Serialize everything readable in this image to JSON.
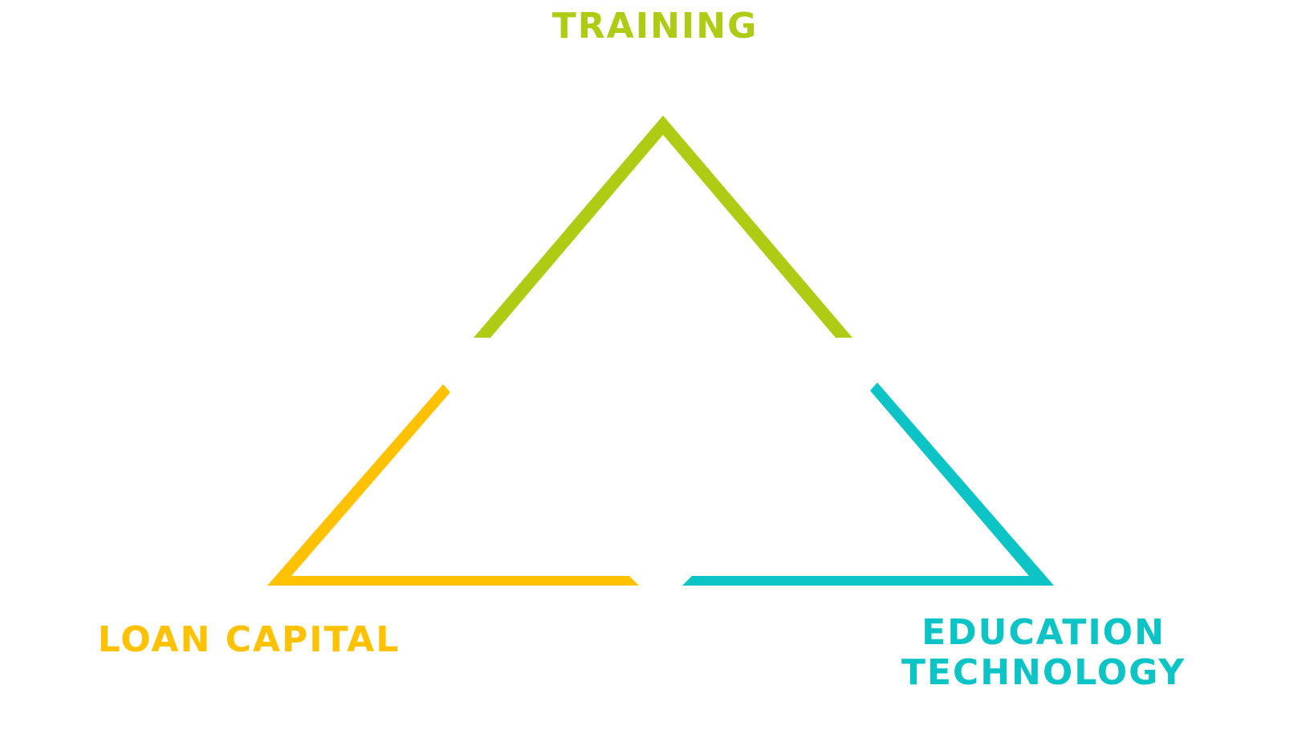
{
  "diagram": {
    "nodes": [
      {
        "id": "training",
        "label": "TRAINING",
        "color": "#afcb13"
      },
      {
        "id": "loan-capital",
        "label": "LOAN CAPITAL",
        "color": "#ffc100"
      },
      {
        "id": "education-technology",
        "lines": [
          "EDUCATION",
          "TECHNOLOGY"
        ],
        "color": "#0cc4c6"
      }
    ]
  }
}
